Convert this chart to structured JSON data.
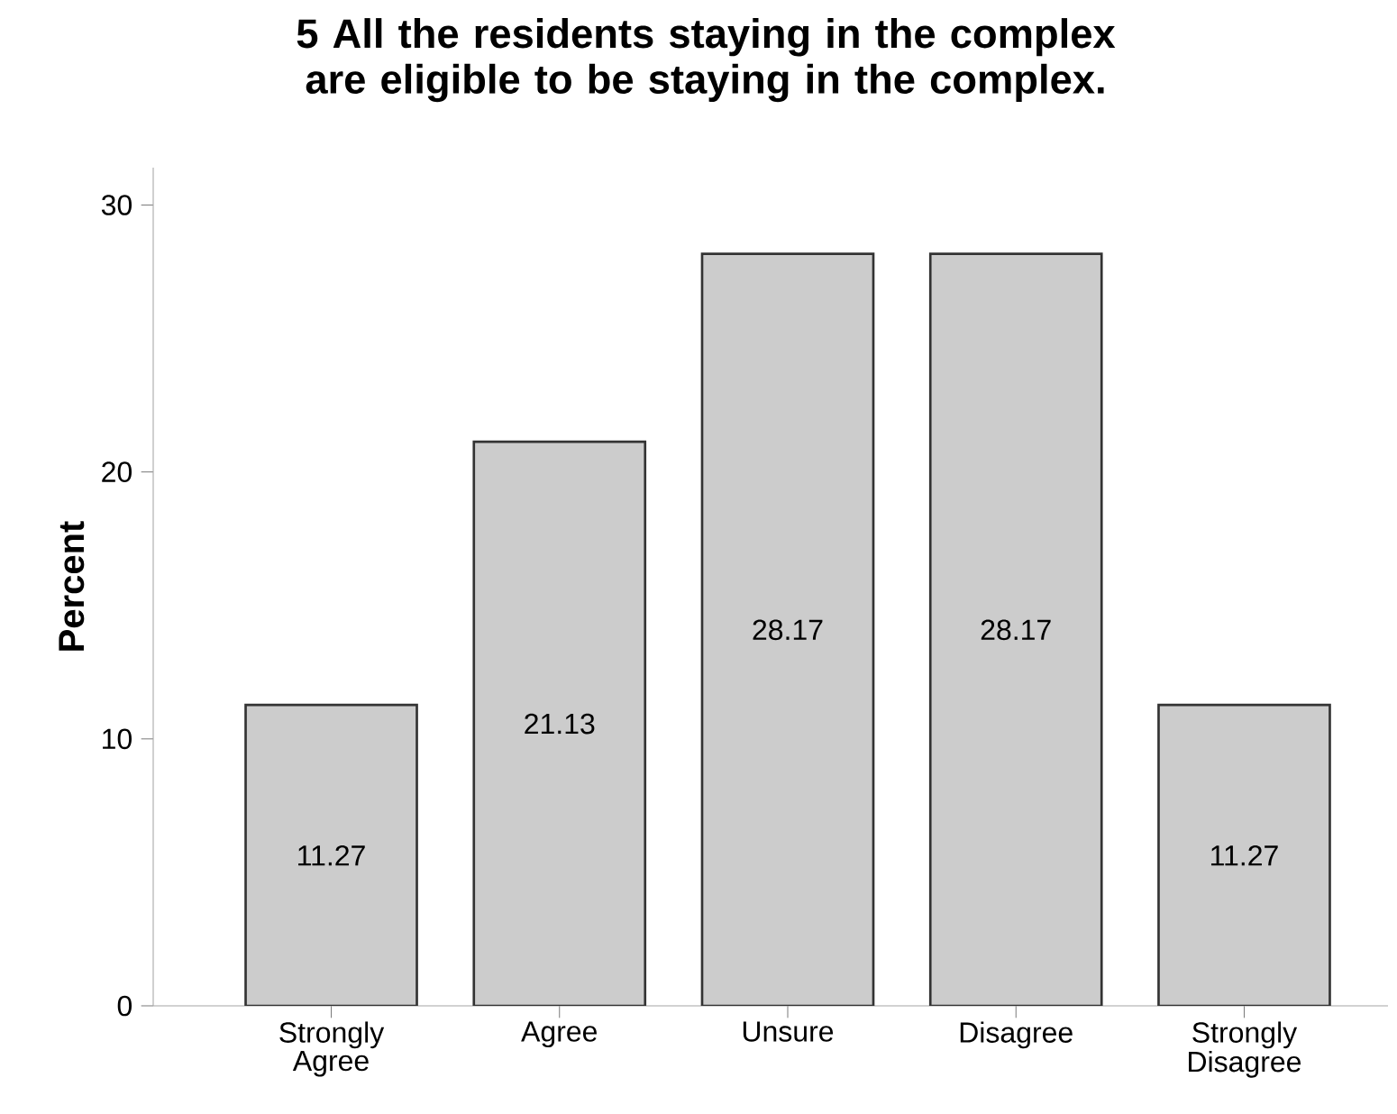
{
  "chart_data": {
    "type": "bar",
    "title": "5 All the residents staying in the complex are eligible to be staying in the complex.",
    "ylabel": "Percent",
    "categories": [
      "Strongly Agree",
      "Agree",
      "Unsure",
      "Disagree",
      "Strongly Disagree"
    ],
    "values": [
      11.27,
      21.13,
      28.17,
      28.17,
      11.27
    ],
    "color": "#cccccc",
    "ylim": [
      0,
      31.4
    ],
    "yticks": [
      0,
      10,
      20,
      30
    ],
    "data_labels": true
  }
}
